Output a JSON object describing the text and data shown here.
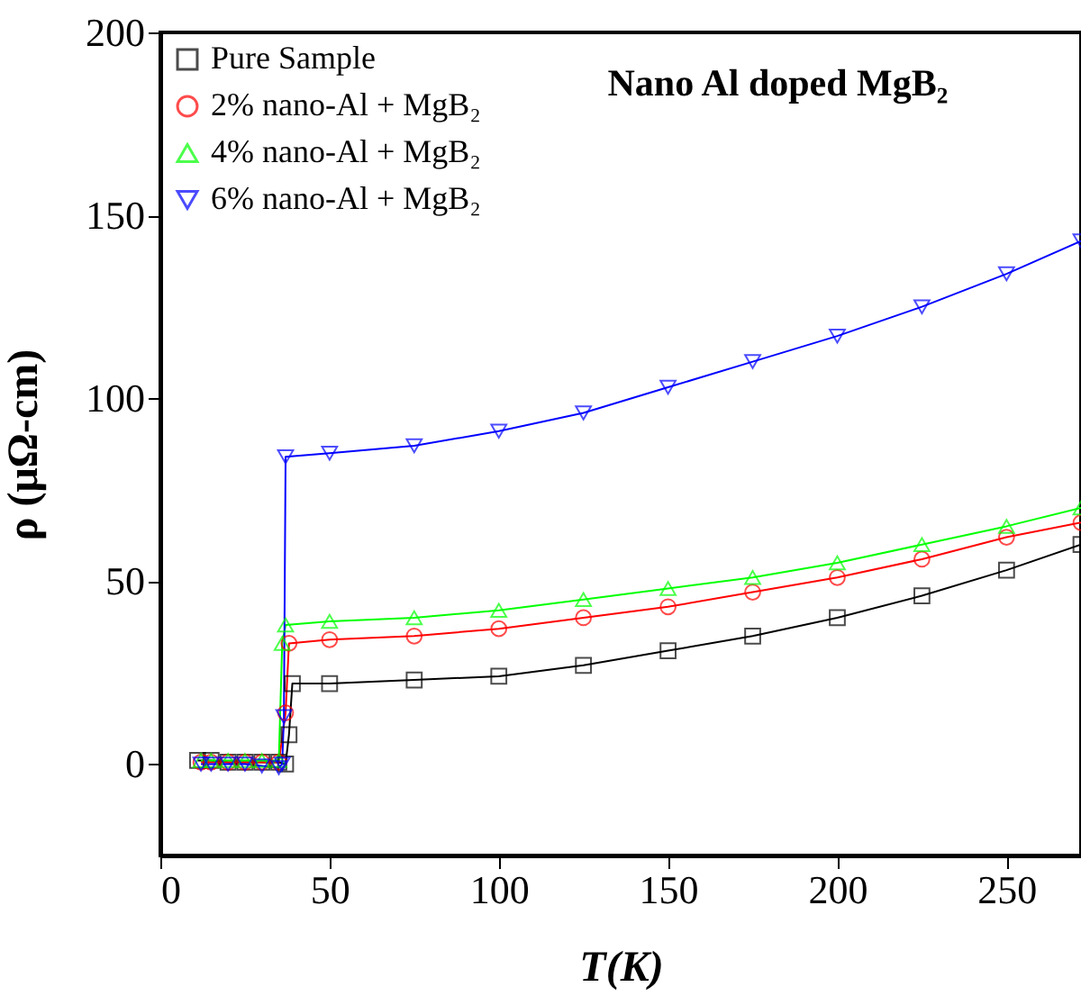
{
  "chart_data": {
    "type": "line",
    "title": "Nano Al doped MgB₂",
    "xlabel": "T(K)",
    "ylabel": "ρ (μΩ-cm)",
    "xlim": [
      0,
      272
    ],
    "ylim": [
      -25,
      200
    ],
    "xticks": [
      0,
      50,
      100,
      150,
      200,
      250
    ],
    "yticks": [
      0,
      50,
      100,
      150,
      200
    ],
    "grid": false,
    "legend": "top left",
    "series": [
      {
        "name": "Pure Sample",
        "color": "#000000",
        "marker": "square",
        "x": [
          11,
          15,
          20,
          25,
          30,
          35,
          37,
          38,
          39,
          50,
          75,
          100,
          125,
          150,
          175,
          200,
          225,
          250,
          272
        ],
        "values": [
          1,
          1,
          0.5,
          0.5,
          0.5,
          0.5,
          0,
          8,
          22,
          22,
          23,
          24,
          27,
          31,
          35,
          40,
          46,
          53,
          60
        ]
      },
      {
        "name": "2% nano-Al + MgB₂",
        "color": "#ff0000",
        "marker": "circle",
        "x": [
          12,
          15,
          20,
          25,
          30,
          35,
          37,
          38,
          50,
          75,
          100,
          125,
          150,
          175,
          200,
          225,
          250,
          272
        ],
        "values": [
          0.5,
          0.5,
          0.5,
          0.5,
          0.5,
          0.5,
          14,
          33,
          34,
          35,
          37,
          40,
          43,
          47,
          51,
          56,
          62,
          66
        ]
      },
      {
        "name": "4% nano-Al + MgB₂",
        "color": "#00ff00",
        "marker": "triangle",
        "x": [
          12,
          15,
          20,
          25,
          30,
          35,
          36,
          37,
          50,
          75,
          100,
          125,
          150,
          175,
          200,
          225,
          250,
          272
        ],
        "values": [
          1,
          1,
          1,
          1,
          1,
          1,
          33,
          38,
          39,
          40,
          42,
          45,
          48,
          51,
          55,
          60,
          65,
          70
        ]
      },
      {
        "name": "6% nano-Al + MgB₂",
        "color": "#0000ff",
        "marker": "triangle-down",
        "x": [
          12,
          15,
          20,
          25,
          30,
          35,
          36,
          36.5,
          37,
          50,
          75,
          100,
          125,
          150,
          175,
          200,
          225,
          250,
          272
        ],
        "values": [
          0,
          0,
          0,
          0,
          -0.5,
          -1,
          0,
          13,
          84,
          85,
          87,
          91,
          96,
          103,
          110,
          117,
          125,
          134,
          143
        ]
      }
    ]
  }
}
